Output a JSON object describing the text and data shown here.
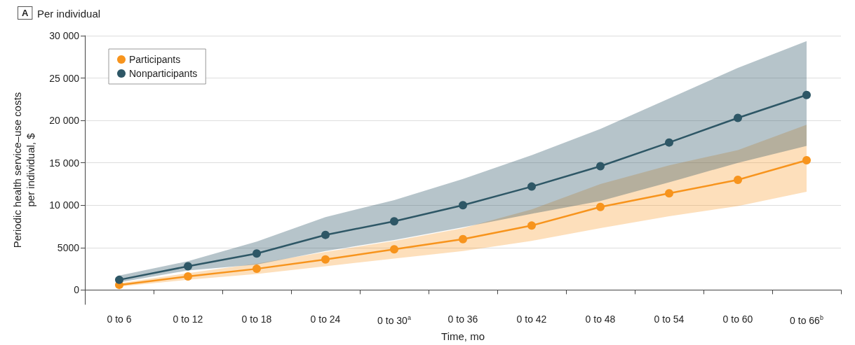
{
  "chart_data": {
    "type": "line",
    "title": "Per individual",
    "annotations": [
      "A"
    ],
    "xlabel": "Time, mo",
    "ylabel": "Periodic health service–use costs\nper individual, $",
    "categories": [
      "0 to 6",
      "0 to 12",
      "0 to 18",
      "0 to 24",
      "0 to 30$^{a}$",
      "0 to 36",
      "0 to 42",
      "0 to 48",
      "0 to 54",
      "0 to 60",
      "0 to 66$^{b}$"
    ],
    "series": [
      {
        "name": "Participants",
        "color": "#f7941d",
        "values": [
          600,
          1600,
          2500,
          3600,
          4800,
          6000,
          7600,
          9800,
          11400,
          13000,
          15300
        ],
        "lower": [
          400,
          1200,
          1900,
          2800,
          3700,
          4600,
          5800,
          7300,
          8700,
          9900,
          11600
        ],
        "upper": [
          800,
          2000,
          3100,
          4500,
          5800,
          7300,
          9500,
          12500,
          14700,
          16500,
          19500
        ]
      },
      {
        "name": "Nonparticipants",
        "color": "#2e5766",
        "values": [
          1200,
          2800,
          4300,
          6500,
          8100,
          10000,
          12200,
          14600,
          17400,
          20300,
          23000
        ],
        "lower": [
          900,
          2300,
          3000,
          4600,
          5900,
          7400,
          9000,
          10500,
          12700,
          15000,
          17000
        ],
        "upper": [
          1700,
          3400,
          5700,
          8600,
          10600,
          13100,
          15900,
          19000,
          22600,
          26200,
          29350
        ]
      }
    ],
    "ylim": [
      -1700,
      30000
    ],
    "yticks": [
      0,
      5000,
      {
        "value": 10000,
        "label": "10 000"
      },
      {
        "value": 15000,
        "label": "15 000"
      },
      {
        "value": 20000,
        "label": "20 000"
      },
      {
        "value": 25000,
        "label": "25 000"
      },
      {
        "value": 30000,
        "label": "30 000"
      }
    ],
    "grid": "y",
    "legend": "top left",
    "marker": "circle",
    "line_style": "solid"
  }
}
